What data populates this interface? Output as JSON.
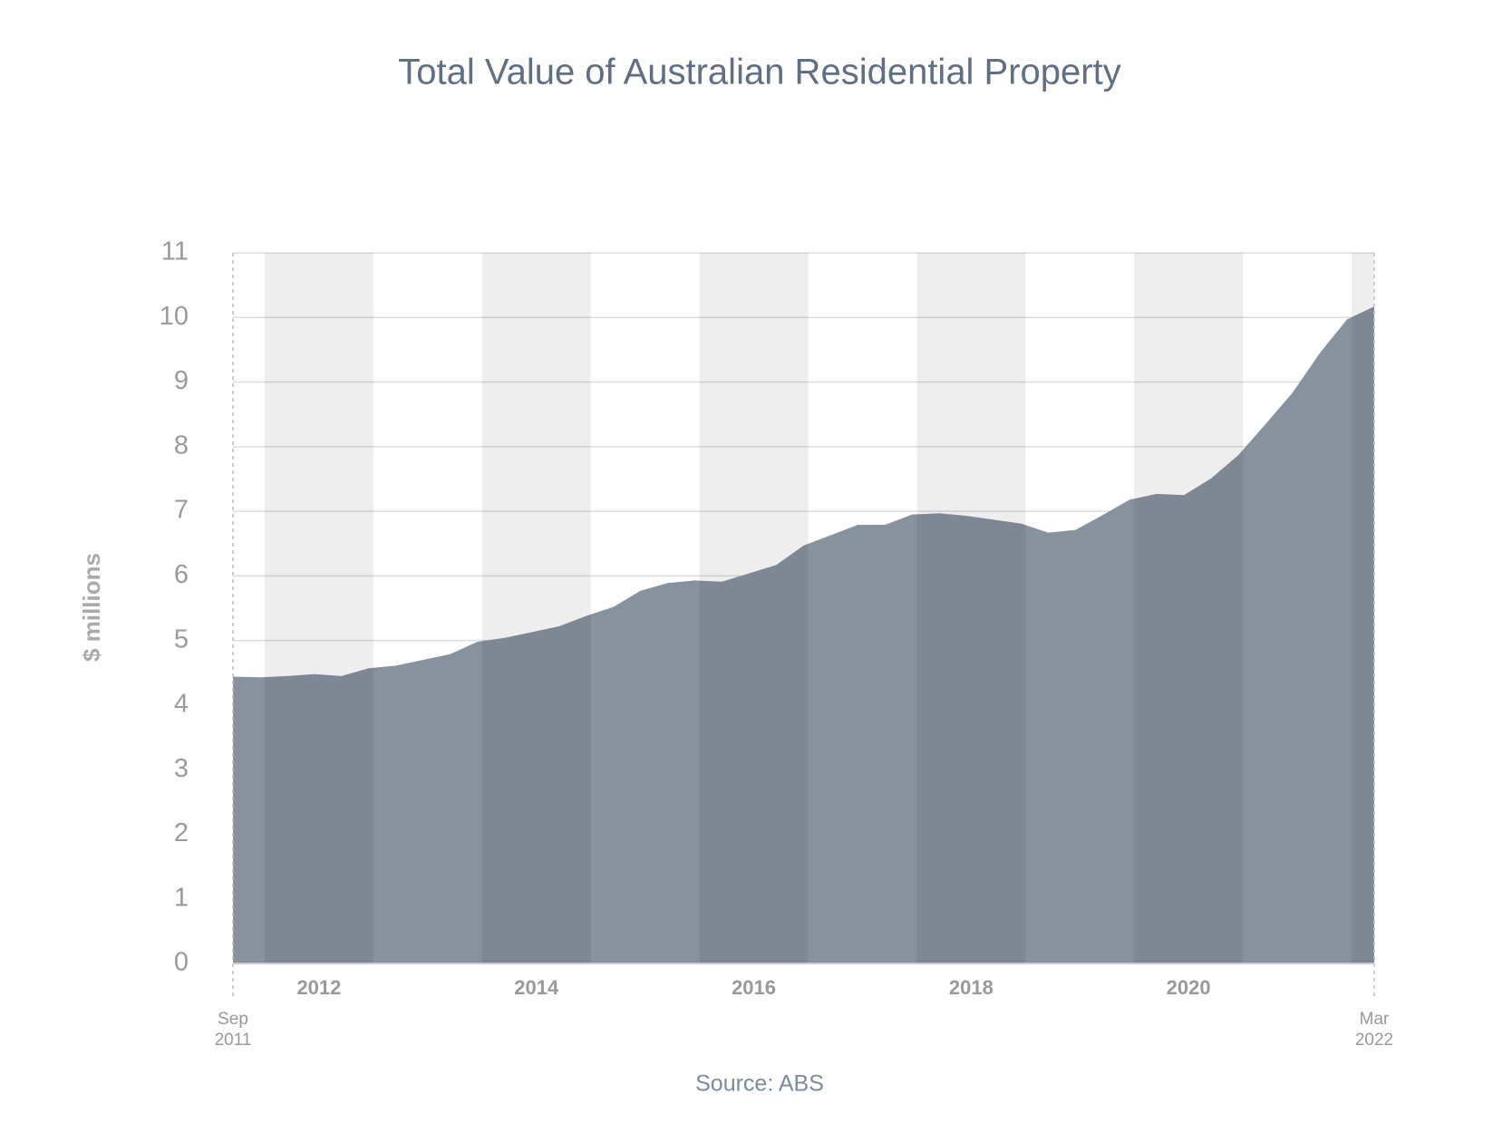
{
  "chart_data": {
    "type": "area",
    "title": "Total Value of Australian Residential Property",
    "y_label": "$ millions",
    "source": "Source: ABS",
    "categories": [
      "Sep 2011",
      null,
      null,
      null,
      null,
      null,
      null,
      null,
      null,
      null,
      null,
      null,
      null,
      null,
      null,
      null,
      null,
      null,
      null,
      null,
      null,
      null,
      null,
      null,
      null,
      null,
      null,
      null,
      null,
      null,
      null,
      null,
      null,
      null,
      null,
      null,
      null,
      null,
      null,
      null,
      null,
      null,
      "Mar 2022"
    ],
    "values": [
      4.44,
      4.43,
      4.45,
      4.48,
      4.45,
      4.57,
      4.61,
      4.7,
      4.79,
      4.98,
      5.04,
      5.13,
      5.22,
      5.38,
      5.52,
      5.77,
      5.89,
      5.93,
      5.91,
      6.04,
      6.17,
      6.47,
      6.63,
      6.79,
      6.79,
      6.95,
      6.97,
      6.93,
      6.87,
      6.81,
      6.67,
      6.71,
      6.94,
      7.18,
      7.27,
      7.25,
      7.51,
      7.87,
      8.35,
      8.84,
      9.45,
      9.97,
      10.17
    ],
    "year_labels": [
      "2012",
      "2014",
      "2016",
      "2018",
      "2020"
    ],
    "color": "#87929f",
    "ylim": [
      0,
      11
    ],
    "yticks": [
      0,
      1,
      2,
      3,
      4,
      5,
      6,
      7,
      8,
      9,
      10,
      11
    ],
    "grid": true
  }
}
